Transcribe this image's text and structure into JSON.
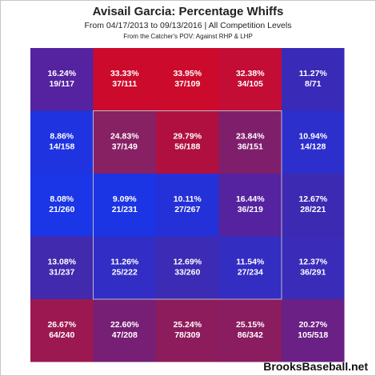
{
  "header": {
    "title": "Avisail Garcia: Percentage Whiffs",
    "subtitle": "From 04/17/2013 to 09/13/2016 | All Competition Levels",
    "note": "From the Catcher's POV:  Against RHP & LHP"
  },
  "watermark": "BrooksBaseball.net",
  "chart_data": {
    "type": "heatmap",
    "title": "Avisail Garcia: Percentage Whiffs",
    "subtitle": "From 04/17/2013 to 09/13/2016 | All Competition Levels",
    "note": "From the Catcher's POV:  Against RHP & LHP",
    "grid": {
      "rows": 5,
      "cols": 5
    },
    "strike_zone": "inner 3x3",
    "cells": [
      [
        {
          "pct": "16.24%",
          "count": "19/117",
          "color": "#5523a0"
        },
        {
          "pct": "33.33%",
          "count": "37/111",
          "color": "#cc0b2c"
        },
        {
          "pct": "33.95%",
          "count": "37/109",
          "color": "#cc0b2c"
        },
        {
          "pct": "32.38%",
          "count": "34/105",
          "color": "#c40d34"
        },
        {
          "pct": "11.27%",
          "count": "8/71",
          "color": "#3a2ab8"
        }
      ],
      [
        {
          "pct": "8.86%",
          "count": "14/158",
          "color": "#1f33e0"
        },
        {
          "pct": "24.83%",
          "count": "37/149",
          "color": "#882164"
        },
        {
          "pct": "29.79%",
          "count": "56/188",
          "color": "#b01040"
        },
        {
          "pct": "23.84%",
          "count": "36/151",
          "color": "#7f1f6c"
        },
        {
          "pct": "10.94%",
          "count": "14/128",
          "color": "#2c2fcc"
        }
      ],
      [
        {
          "pct": "8.08%",
          "count": "21/260",
          "color": "#1a36e6"
        },
        {
          "pct": "9.09%",
          "count": "21/231",
          "color": "#1c35e4"
        },
        {
          "pct": "10.11%",
          "count": "27/267",
          "color": "#2531d8"
        },
        {
          "pct": "16.44%",
          "count": "36/219",
          "color": "#55239f"
        },
        {
          "pct": "12.67%",
          "count": "28/221",
          "color": "#3d2ab2"
        }
      ],
      [
        {
          "pct": "13.08%",
          "count": "31/237",
          "color": "#422aae"
        },
        {
          "pct": "11.26%",
          "count": "25/222",
          "color": "#322dc4"
        },
        {
          "pct": "12.69%",
          "count": "33/260",
          "color": "#3c2bb4"
        },
        {
          "pct": "11.54%",
          "count": "27/234",
          "color": "#342dc2"
        },
        {
          "pct": "12.37%",
          "count": "36/291",
          "color": "#3a2bb8"
        }
      ],
      [
        {
          "pct": "26.67%",
          "count": "64/240",
          "color": "#9c1850"
        },
        {
          "pct": "22.60%",
          "count": "47/208",
          "color": "#761f74"
        },
        {
          "pct": "25.24%",
          "count": "78/309",
          "color": "#8d1c5c"
        },
        {
          "pct": "25.15%",
          "count": "86/342",
          "color": "#8a1c60"
        },
        {
          "pct": "20.27%",
          "count": "105/518",
          "color": "#6a2084"
        }
      ]
    ]
  }
}
